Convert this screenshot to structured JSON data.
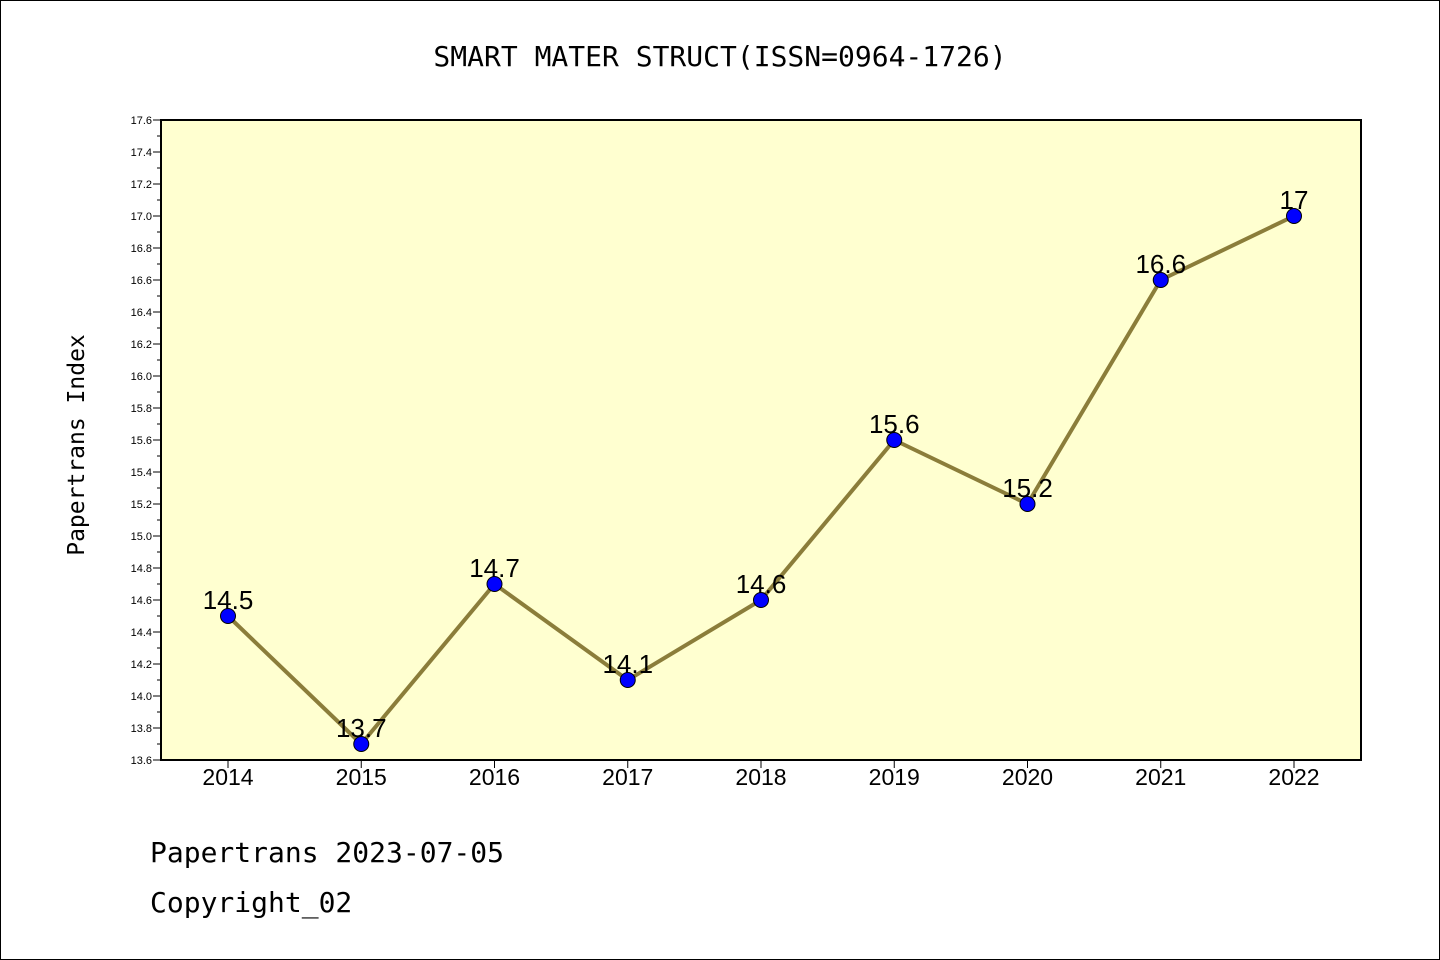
{
  "chart_data": {
    "type": "line",
    "title": "SMART MATER STRUCT(ISSN=0964-1726)",
    "ylabel": "Papertrans Index",
    "xlabel": "",
    "categories": [
      "2014",
      "2015",
      "2016",
      "2017",
      "2018",
      "2019",
      "2020",
      "2021",
      "2022"
    ],
    "values": [
      14.5,
      13.7,
      14.7,
      14.1,
      14.6,
      15.6,
      15.2,
      16.6,
      17
    ],
    "data_labels": [
      "14.5",
      "13.7",
      "14.7",
      "14.1",
      "14.6",
      "15.6",
      "15.2",
      "16.6",
      "17"
    ],
    "ylim": [
      13.6,
      17.6
    ],
    "yticks": [
      "13.6",
      "13.8",
      "14.0",
      "14.2",
      "14.4",
      "14.6",
      "14.8",
      "15.0",
      "15.2",
      "15.4",
      "15.6",
      "15.8",
      "16.0",
      "16.2",
      "16.4",
      "16.6",
      "16.8",
      "17.0",
      "17.2",
      "17.4",
      "17.6"
    ],
    "grid": false,
    "colors": {
      "plot_background": "#ffffd0",
      "line": "#8b7d3a",
      "marker": "#0000ff"
    }
  },
  "footer": {
    "line1": "Papertrans 2023-07-05",
    "line2": "Copyright_02"
  }
}
